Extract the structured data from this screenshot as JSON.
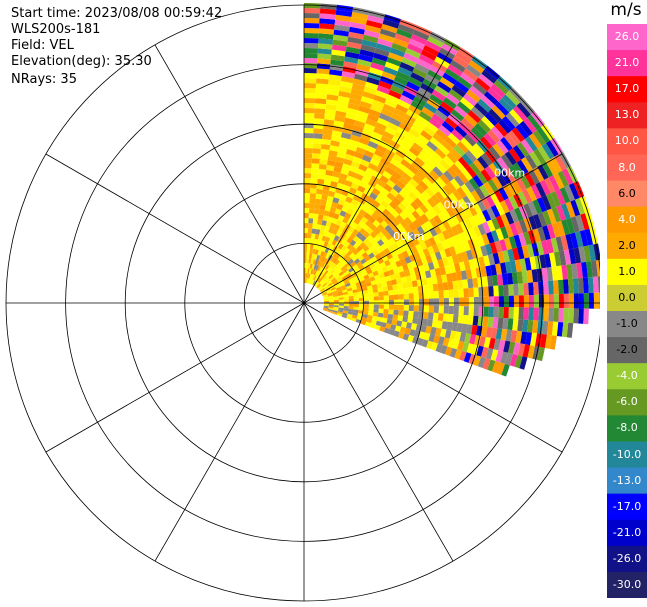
{
  "info": {
    "start_time": "Start time: 2023/08/08 00:59:42",
    "site": "WLS200s-181",
    "field": "Field: VEL",
    "elevation": "Elevation(deg): 35.30",
    "nrays": "NRays: 35"
  },
  "chart_data": {
    "type": "heatmap",
    "subtype": "polar-ppi-sector",
    "sector_deg": [
      0,
      110
    ],
    "n_rays": 35,
    "range_rings": 5,
    "ring_labels": [
      "00km",
      "00km",
      "00km"
    ],
    "grid": true,
    "colorbar": {
      "title": "m/s",
      "ticks": [
        "26.0",
        "21.0",
        "17.0",
        "13.0",
        "10.0",
        "8.0",
        "6.0",
        "4.0",
        "2.0",
        "1.0",
        "0.0",
        "-1.0",
        "-2.0",
        "-4.0",
        "-6.0",
        "-8.0",
        "-10.0",
        "-13.0",
        "-17.0",
        "-21.0",
        "-26.0",
        "-30.0"
      ],
      "colors": [
        "#ff66cc",
        "#ff3399",
        "#ff0000",
        "#ee2222",
        "#ff5544",
        "#ff6655",
        "#ff8866",
        "#ff9900",
        "#ffaa00",
        "#ffff00",
        "#cccc33",
        "#888888",
        "#666666",
        "#99cc33",
        "#669922",
        "#228833",
        "#228899",
        "#3388cc",
        "#0000ff",
        "#0000cc",
        "#111188",
        "#222266"
      ],
      "placement": "right"
    }
  }
}
